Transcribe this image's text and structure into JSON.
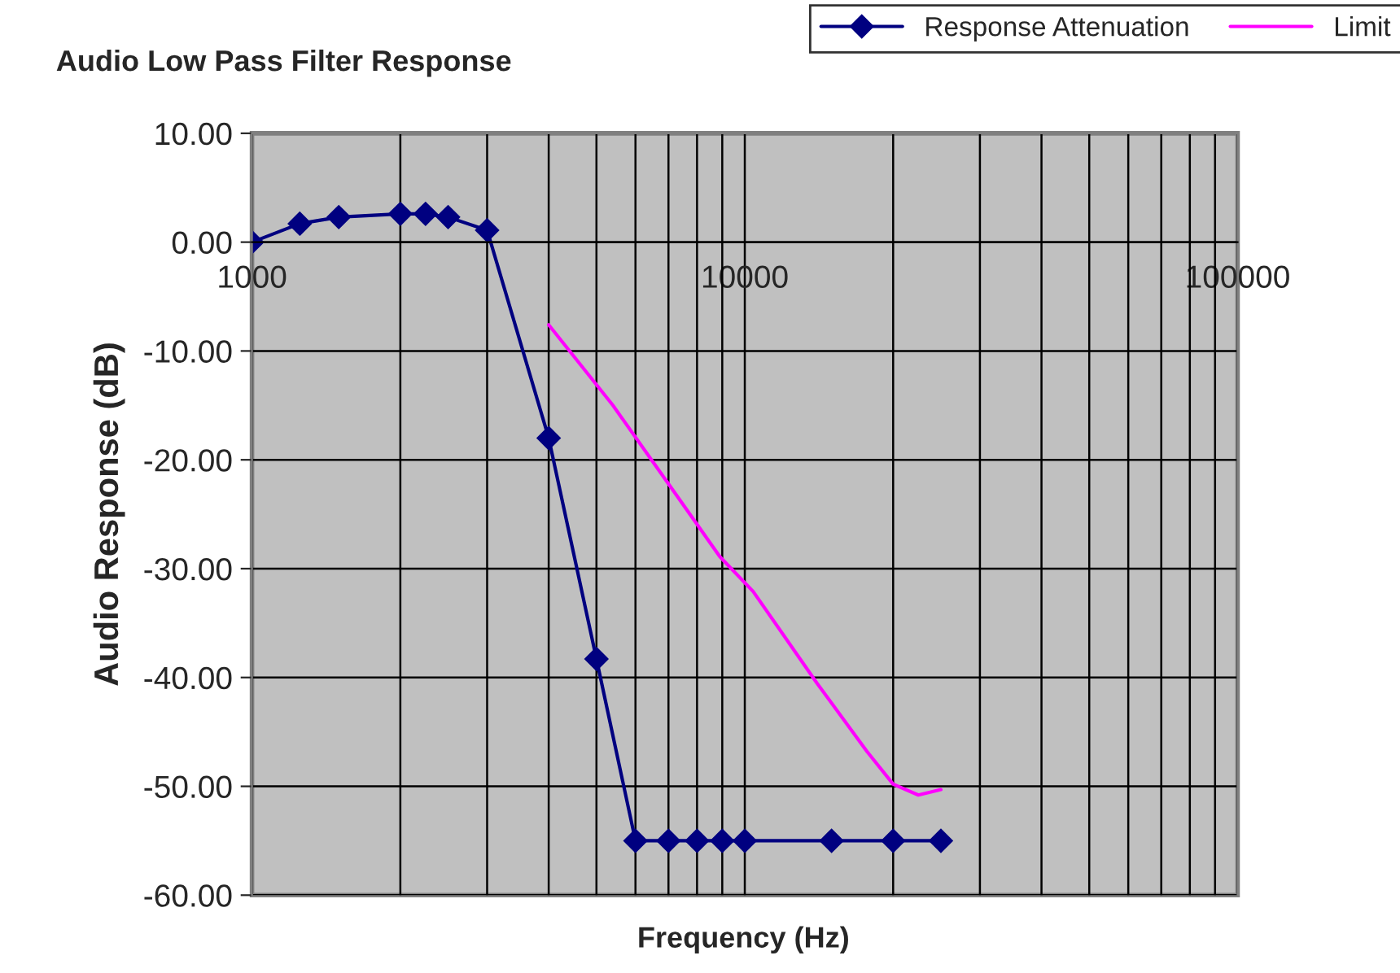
{
  "chart_data": {
    "type": "line",
    "title": "Audio Low Pass Filter Response",
    "xlabel": "Frequency (Hz)",
    "ylabel": "Audio Response (dB)",
    "log": "x",
    "grid": true,
    "legend": "top right",
    "xlim": [
      1000,
      100000
    ],
    "xticks": [
      1000,
      10000,
      100000
    ],
    "ylim": [
      -60,
      10
    ],
    "yticks": [
      {
        "value": 10,
        "label": "10.00"
      },
      {
        "value": 0,
        "label": "0.00"
      },
      {
        "value": -10,
        "label": "-10.00"
      },
      {
        "value": -20,
        "label": "-20.00"
      },
      {
        "value": -30,
        "label": "-30.00"
      },
      {
        "value": -40,
        "label": "-40.00"
      },
      {
        "value": -50,
        "label": "-50.00"
      },
      {
        "value": -60,
        "label": "-60.00"
      }
    ],
    "series": [
      {
        "name": "Response Attenuation",
        "color": "#000080",
        "marker": "diamond",
        "x": [
          1000,
          1250,
          1500,
          2000,
          2250,
          2500,
          3000,
          4000,
          5000,
          6000,
          7000,
          8000,
          9000,
          10000,
          15000,
          20000,
          25000
        ],
        "values": [
          0,
          1.7,
          2.3,
          2.6,
          2.6,
          2.3,
          1.1,
          -18,
          -38.3,
          -55,
          -55,
          -55,
          -55,
          -55,
          -55,
          -55,
          -55
        ]
      },
      {
        "name": "Limit",
        "color": "#ff00ff",
        "marker": "none",
        "x": [
          4000,
          5400,
          7100,
          8900,
          10400,
          14000,
          17700,
          20000,
          22500,
          25000
        ],
        "values": [
          -7.6,
          -15,
          -22.6,
          -28.9,
          -32.1,
          -40.5,
          -46.8,
          -49.8,
          -50.8,
          -50.3
        ]
      }
    ]
  }
}
